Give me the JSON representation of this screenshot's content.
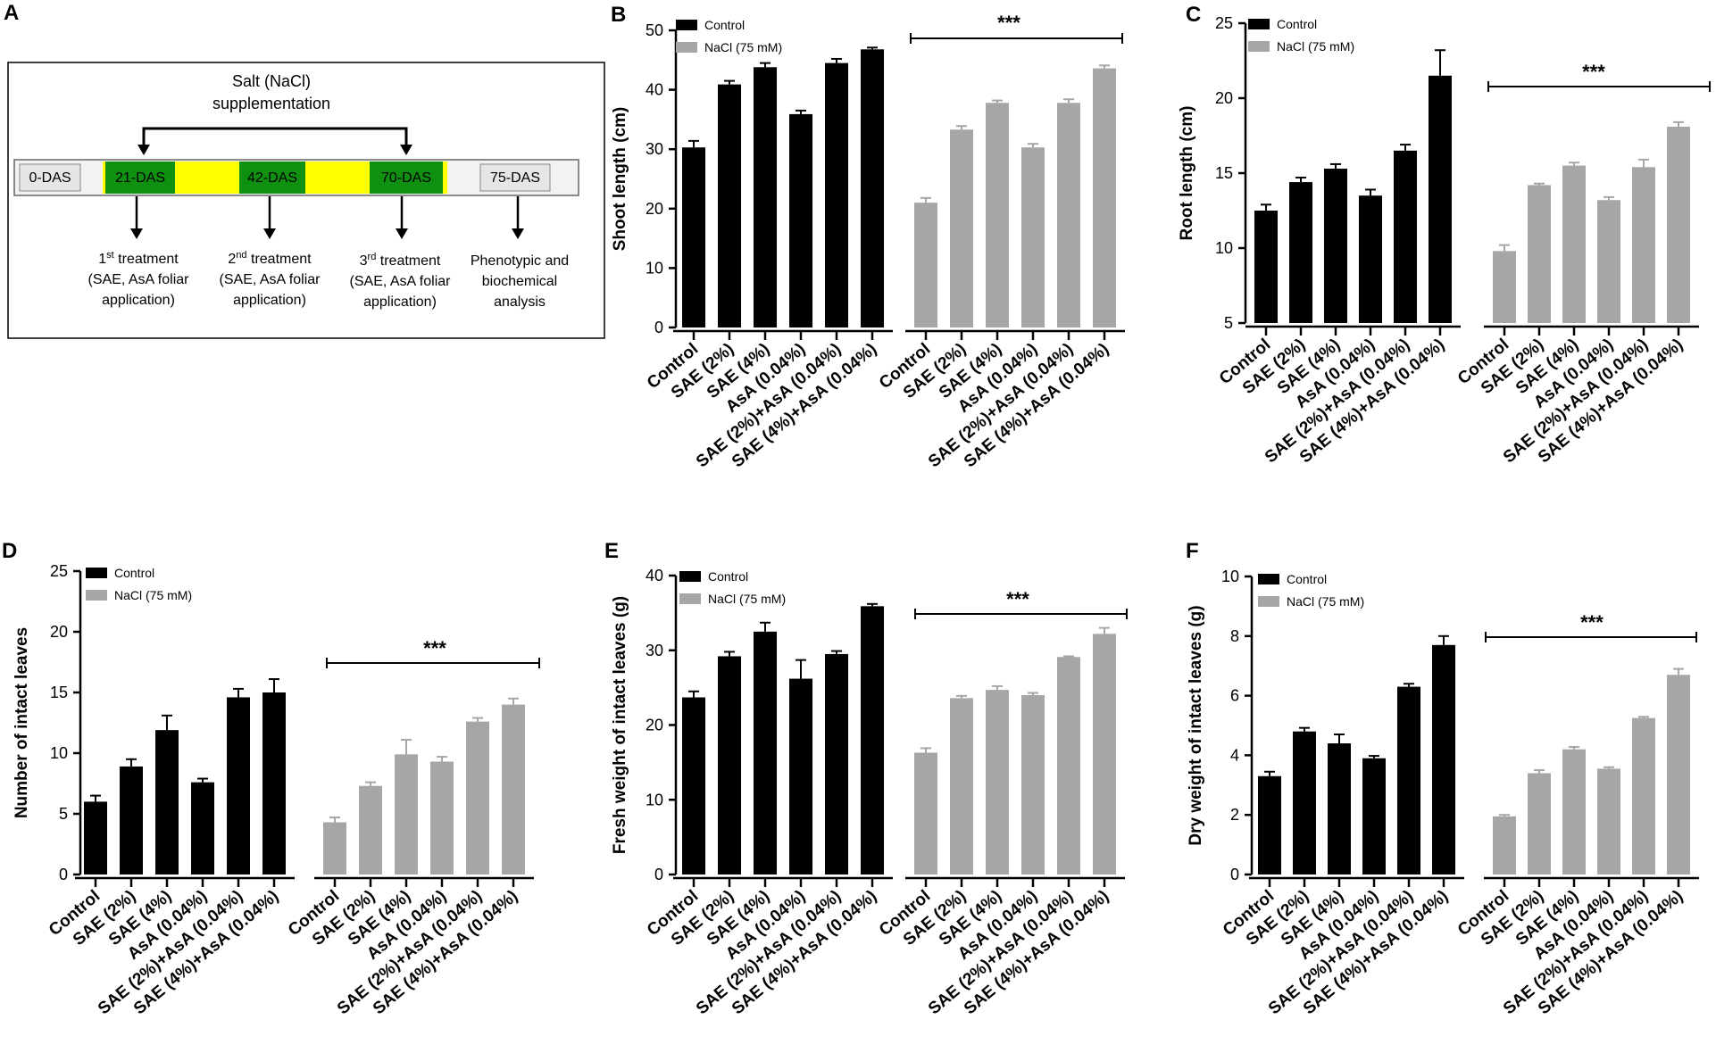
{
  "panel_letters": [
    "A",
    "B",
    "C",
    "D",
    "E",
    "F"
  ],
  "diagram": {
    "title_line1": "Salt (NaCl)",
    "title_line2": "supplementation",
    "timeline": [
      "0-DAS",
      "21-DAS",
      "42-DAS",
      "70-DAS",
      "75-DAS"
    ],
    "steps": [
      {
        "num": "1",
        "sup": "st",
        "head": " treatment",
        "line2": "(SAE, AsA foliar",
        "line3": "application)"
      },
      {
        "num": "2",
        "sup": "nd",
        "head": " treatment",
        "line2": "(SAE, AsA foliar",
        "line3": "application)"
      },
      {
        "num": "3",
        "sup": "rd",
        "head": " treatment",
        "line2": "(SAE, AsA foliar",
        "line3": "application)"
      },
      {
        "num": "",
        "sup": "",
        "head": "Phenotypic and",
        "line2": "biochemical",
        "line3": "analysis"
      }
    ],
    "colors": {
      "green": "#109010",
      "yellow": "#ffff00",
      "grey": "#e6e6e6"
    }
  },
  "chart_data": [
    {
      "panel": "B",
      "type": "bar",
      "ylabel": "Shoot length (cm)",
      "ylim": [
        0,
        50
      ],
      "yticks": [
        0,
        10,
        20,
        30,
        40,
        50
      ],
      "categories": [
        "Control",
        "SAE (2%)",
        "SAE (4%)",
        "AsA (0.04%)",
        "SAE (2%)+AsA (0.04%)",
        "SAE (4%)+AsA (0.04%)"
      ],
      "series": [
        {
          "name": "Control",
          "color": "#000000",
          "values": [
            30.3,
            40.9,
            43.8,
            35.9,
            44.5,
            46.8
          ],
          "errors": [
            1.1,
            0.6,
            0.7,
            0.6,
            0.7,
            0.3
          ]
        },
        {
          "name": "NaCl (75 mM)",
          "color": "#a6a6a6",
          "values": [
            21.0,
            33.3,
            37.8,
            30.3,
            37.8,
            43.6
          ],
          "errors": [
            0.8,
            0.6,
            0.4,
            0.6,
            0.6,
            0.5
          ]
        }
      ],
      "legend": [
        "Control",
        "NaCl (75 mM)"
      ],
      "significance": "***",
      "significance_spans": "NaCl (75 mM)"
    },
    {
      "panel": "C",
      "type": "bar",
      "ylabel": "Root length (cm)",
      "ylim": [
        5,
        25
      ],
      "yticks": [
        5,
        10,
        15,
        20,
        25
      ],
      "categories": [
        "Control",
        "SAE (2%)",
        "SAE (4%)",
        "AsA (0.04%)",
        "SAE (2%)+AsA (0.04%)",
        "SAE (4%)+AsA (0.04%)"
      ],
      "series": [
        {
          "name": "Control",
          "color": "#000000",
          "values": [
            12.5,
            14.4,
            15.3,
            13.5,
            16.5,
            21.5
          ],
          "errors": [
            0.4,
            0.3,
            0.3,
            0.4,
            0.4,
            1.7
          ]
        },
        {
          "name": "NaCl (75 mM)",
          "color": "#a6a6a6",
          "values": [
            9.8,
            14.2,
            15.5,
            13.2,
            15.4,
            18.1
          ],
          "errors": [
            0.4,
            0.1,
            0.2,
            0.2,
            0.5,
            0.3
          ]
        }
      ],
      "legend": [
        "Control",
        "NaCl (75 mM)"
      ],
      "significance": "***",
      "significance_spans": "NaCl (75 mM)"
    },
    {
      "panel": "D",
      "type": "bar",
      "ylabel": "Number of intact leaves",
      "ylim": [
        0,
        25
      ],
      "yticks": [
        0,
        5,
        10,
        15,
        20,
        25
      ],
      "categories": [
        "Control",
        "SAE (2%)",
        "SAE (4%)",
        "AsA (0.04%)",
        "SAE (2%)+AsA (0.04%)",
        "SAE (4%)+AsA (0.04%)"
      ],
      "series": [
        {
          "name": "Control",
          "color": "#000000",
          "values": [
            6.0,
            8.9,
            11.9,
            7.6,
            14.6,
            15.0
          ],
          "errors": [
            0.5,
            0.6,
            1.2,
            0.3,
            0.7,
            1.1
          ]
        },
        {
          "name": "NaCl (75 mM)",
          "color": "#a6a6a6",
          "values": [
            4.3,
            7.3,
            9.9,
            9.3,
            12.6,
            14.0
          ],
          "errors": [
            0.4,
            0.3,
            1.2,
            0.4,
            0.3,
            0.5
          ]
        }
      ],
      "legend": [
        "Control",
        "NaCl (75 mM)"
      ],
      "significance": "***",
      "significance_spans": "NaCl (75 mM)"
    },
    {
      "panel": "E",
      "type": "bar",
      "ylabel": "Fresh weight of intact leaves (g)",
      "ylim": [
        0,
        40
      ],
      "yticks": [
        0,
        10,
        20,
        30,
        40
      ],
      "categories": [
        "Control",
        "SAE (2%)",
        "SAE (4%)",
        "AsA  (0.04%)",
        "SAE (2%)+AsA (0.04%)",
        "SAE (4%)+AsA (0.04%)"
      ],
      "series": [
        {
          "name": "Control",
          "color": "#000000",
          "values": [
            23.7,
            29.2,
            32.5,
            26.2,
            29.5,
            35.9
          ],
          "errors": [
            0.8,
            0.6,
            1.2,
            2.5,
            0.4,
            0.3
          ]
        },
        {
          "name": "NaCl (75 mM)",
          "color": "#a6a6a6",
          "values": [
            16.3,
            23.6,
            24.7,
            24.0,
            29.1,
            32.2
          ],
          "errors": [
            0.6,
            0.3,
            0.5,
            0.3,
            0.1,
            0.8
          ]
        }
      ],
      "legend": [
        "Control",
        "NaCl (75 mM)"
      ],
      "significance": "***",
      "significance_spans": "NaCl (75 mM)"
    },
    {
      "panel": "F",
      "type": "bar",
      "ylabel": "Dry weight of intact leaves (g)",
      "ylim": [
        0,
        10
      ],
      "yticks": [
        0,
        2,
        4,
        6,
        8,
        10
      ],
      "categories": [
        "Control",
        "SAE (2%)",
        "SAE (4%)",
        "AsA (0.04%)",
        "SAE (2%)+AsA (0.04%)",
        "SAE (4%)+AsA (0.04%)"
      ],
      "series": [
        {
          "name": "Control",
          "color": "#000000",
          "values": [
            3.3,
            4.8,
            4.4,
            3.9,
            6.3,
            7.7
          ],
          "errors": [
            0.15,
            0.12,
            0.3,
            0.08,
            0.1,
            0.3
          ]
        },
        {
          "name": "NaCl (75 mM)",
          "color": "#a6a6a6",
          "values": [
            1.95,
            3.4,
            4.2,
            3.55,
            5.25,
            6.7
          ],
          "errors": [
            0.05,
            0.1,
            0.08,
            0.05,
            0.04,
            0.2
          ]
        }
      ],
      "legend": [
        "Control",
        "NaCl (75 mM)"
      ],
      "significance": "***",
      "significance_spans": "NaCl (75 mM)"
    }
  ]
}
